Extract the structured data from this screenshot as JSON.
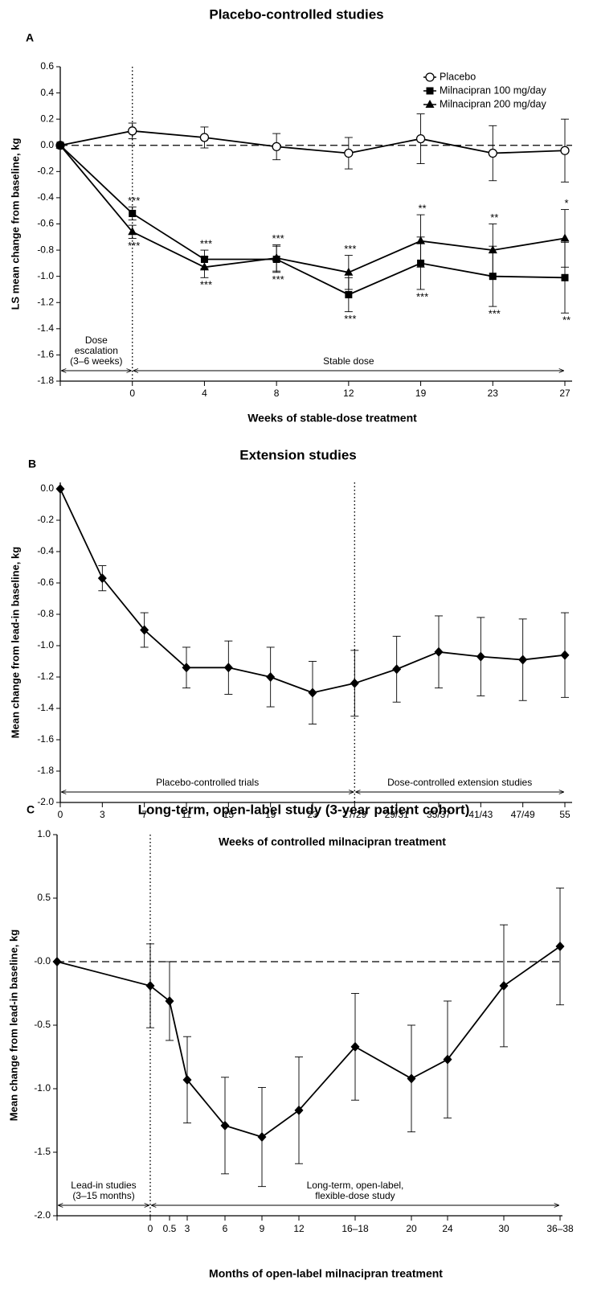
{
  "chart_data": [
    {
      "type": "line",
      "label": "A",
      "title": "Placebo-controlled studies",
      "x_label": "Weeks of stable-dose treatment",
      "y_label": "LS mean change from baseline, kg",
      "categories": [
        null,
        "0",
        "4",
        "8",
        "12",
        "19",
        "23",
        "27"
      ],
      "series": [
        {
          "name": "Placebo",
          "color": "#000000",
          "marker": "circle-open",
          "values": [
            0,
            0.11,
            0.06,
            -0.01,
            -0.06,
            0.05,
            -0.06,
            -0.04
          ],
          "errors": [
            null,
            0.06,
            0.08,
            0.1,
            0.12,
            0.19,
            0.21,
            0.24
          ]
        },
        {
          "name": "Milnacipran 100 mg/day",
          "color": "#000000",
          "marker": "square",
          "values": [
            0,
            -0.52,
            -0.87,
            -0.87,
            -1.14,
            -0.9,
            -1.0,
            -1.01
          ],
          "errors": [
            null,
            0.05,
            0.07,
            0.1,
            0.13,
            0.2,
            0.23,
            0.27
          ],
          "significance": [
            null,
            "***",
            "***",
            "***",
            "***",
            "***",
            "***",
            "**"
          ]
        },
        {
          "name": "Milnacipran 200 mg/day",
          "color": "#000000",
          "marker": "triangle",
          "values": [
            0,
            -0.66,
            -0.93,
            -0.86,
            -0.97,
            -0.73,
            -0.8,
            -0.71
          ],
          "errors": [
            null,
            0.05,
            0.08,
            0.1,
            0.13,
            0.2,
            0.2,
            0.22
          ],
          "significance": [
            null,
            "***",
            "***",
            "***",
            "***",
            "**",
            "**",
            "*"
          ]
        }
      ],
      "ylim": [
        -1.8,
        0.6
      ],
      "yticks": [
        {
          "value": -1.8,
          "label": "-1.8"
        },
        -1.6,
        -1.4,
        -1.2,
        {
          "value": -1,
          "label": "-1.0"
        },
        -0.8,
        -0.6,
        -0.4,
        -0.2,
        {
          "value": 0,
          "label": "0.0"
        },
        0.2,
        0.4,
        0.6
      ],
      "zero_line": true,
      "legend": "upper right",
      "phases": [
        {
          "label": [
            "Dose",
            "escalation",
            "(3–6 weeks)"
          ]
        },
        {
          "label": [
            "Stable dose"
          ]
        }
      ]
    },
    {
      "type": "line",
      "label": "B",
      "title": "Extension studies",
      "x_label": "Weeks of controlled milnacipran treatment",
      "y_label": "Mean change from lead-in baseline, kg",
      "categories": [
        "0",
        "3",
        "7",
        "11",
        "15",
        "19",
        "23",
        "27/29",
        "29/31",
        "35/37",
        "41/43",
        "47/49",
        "55"
      ],
      "series": [
        {
          "color": "#000000",
          "marker": "diamond",
          "values": [
            0,
            -0.57,
            -0.9,
            -1.14,
            -1.14,
            -1.2,
            -1.3,
            -1.24,
            -1.15,
            -1.04,
            -1.07,
            -1.09,
            -1.06
          ],
          "errors": [
            null,
            0.08,
            0.11,
            0.13,
            0.17,
            0.19,
            0.2,
            0.21,
            0.21,
            0.23,
            0.25,
            0.26,
            0.27
          ]
        }
      ],
      "ylim": [
        -2,
        0
      ],
      "yticks": [
        {
          "value": -2,
          "label": "-2.0"
        },
        -1.8,
        -1.6,
        -1.4,
        -1.2,
        {
          "value": -1,
          "label": "-1.0"
        },
        -0.8,
        -0.6,
        -0.4,
        -0.2,
        {
          "value": 0,
          "label": "0.0"
        }
      ],
      "zero_line": false,
      "phases": [
        {
          "label": [
            "Placebo-controlled trials"
          ]
        },
        {
          "label": [
            "Dose-controlled extension studies"
          ]
        }
      ]
    },
    {
      "type": "line",
      "label": "C",
      "title": "Long-term, open-label study (3-year patient cohort)",
      "x_label": "Months of open-label milnacipran treatment",
      "y_label": "Mean change from lead-in baseline, kg",
      "categories": [
        null,
        "0",
        "0.5",
        "3",
        "6",
        "9",
        "12",
        "16–18",
        "20",
        "24",
        "30",
        "36–38"
      ],
      "series": [
        {
          "color": "#000000",
          "marker": "diamond",
          "values": [
            0,
            -0.19,
            -0.31,
            -0.93,
            -1.29,
            -1.38,
            -1.17,
            -0.67,
            -0.92,
            -0.77,
            -0.19,
            0.12
          ],
          "errors": [
            null,
            0.33,
            0.31,
            0.34,
            0.38,
            0.39,
            0.42,
            0.42,
            0.42,
            0.46,
            0.48,
            0.46
          ]
        }
      ],
      "ylim": [
        -2,
        1
      ],
      "yticks": [
        {
          "value": -2,
          "label": "-2.0"
        },
        -1.5,
        {
          "value": -1,
          "label": "-1.0"
        },
        -0.5,
        {
          "value": 0,
          "label": "-0.0"
        },
        0.5,
        {
          "value": 1,
          "label": "1.0"
        }
      ],
      "zero_line": true,
      "phases": [
        {
          "label": [
            "Lead-in studies",
            "(3–15 months)"
          ]
        },
        {
          "label": [
            "Long-term, open-label,",
            "flexible-dose study"
          ]
        }
      ]
    }
  ]
}
